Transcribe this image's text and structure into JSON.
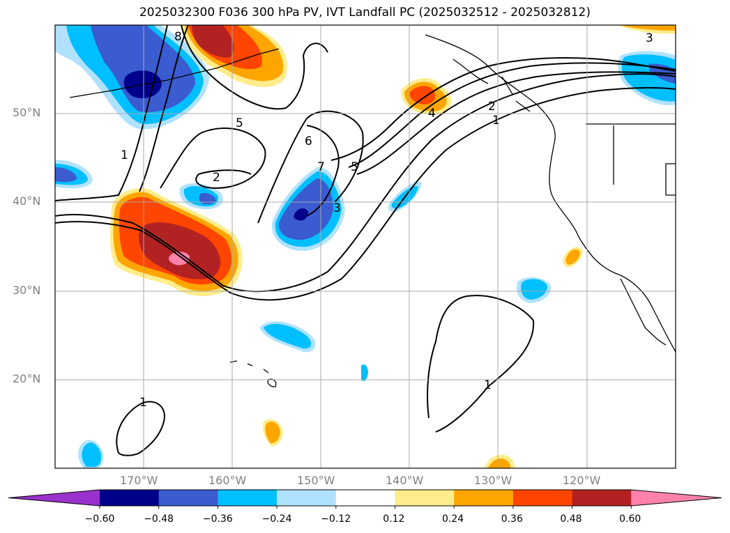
{
  "title": "2025032300 F036 300 hPa PV, IVT Landfall PC (2025032512 - 2025032812)",
  "lat_labels": [
    "50°N",
    "40°N",
    "30°N",
    "20°N"
  ],
  "lon_labels": [
    "170°W",
    "160°W",
    "150°W",
    "140°W",
    "130°W",
    "120°W"
  ],
  "colorbar": {
    "ticks": [
      "−0.60",
      "−0.48",
      "−0.36",
      "−0.24",
      "−0.12",
      "0.12",
      "0.24",
      "0.36",
      "0.48",
      "0.60"
    ],
    "levels": [
      -0.6,
      -0.48,
      -0.36,
      -0.24,
      -0.12,
      0.12,
      0.24,
      0.36,
      0.48,
      0.6
    ],
    "colors": [
      "#9932cc",
      "#00008b",
      "#3b5bd0",
      "#00bfff",
      "#b0e2ff",
      "#ffffff",
      "#ffec8b",
      "#ffa500",
      "#ff4500",
      "#b22222",
      "#ff82ab"
    ]
  },
  "contour_labels": [
    "8",
    "3",
    "1",
    "5",
    "6",
    "2",
    "7",
    "5",
    "3",
    "2",
    "1",
    "4",
    "1",
    "1"
  ],
  "map": {
    "projection": "plate-carree",
    "lon_range": [
      "180°W",
      "110°W"
    ],
    "lat_range": [
      "10°N",
      "60°N"
    ],
    "gridlines": true
  }
}
